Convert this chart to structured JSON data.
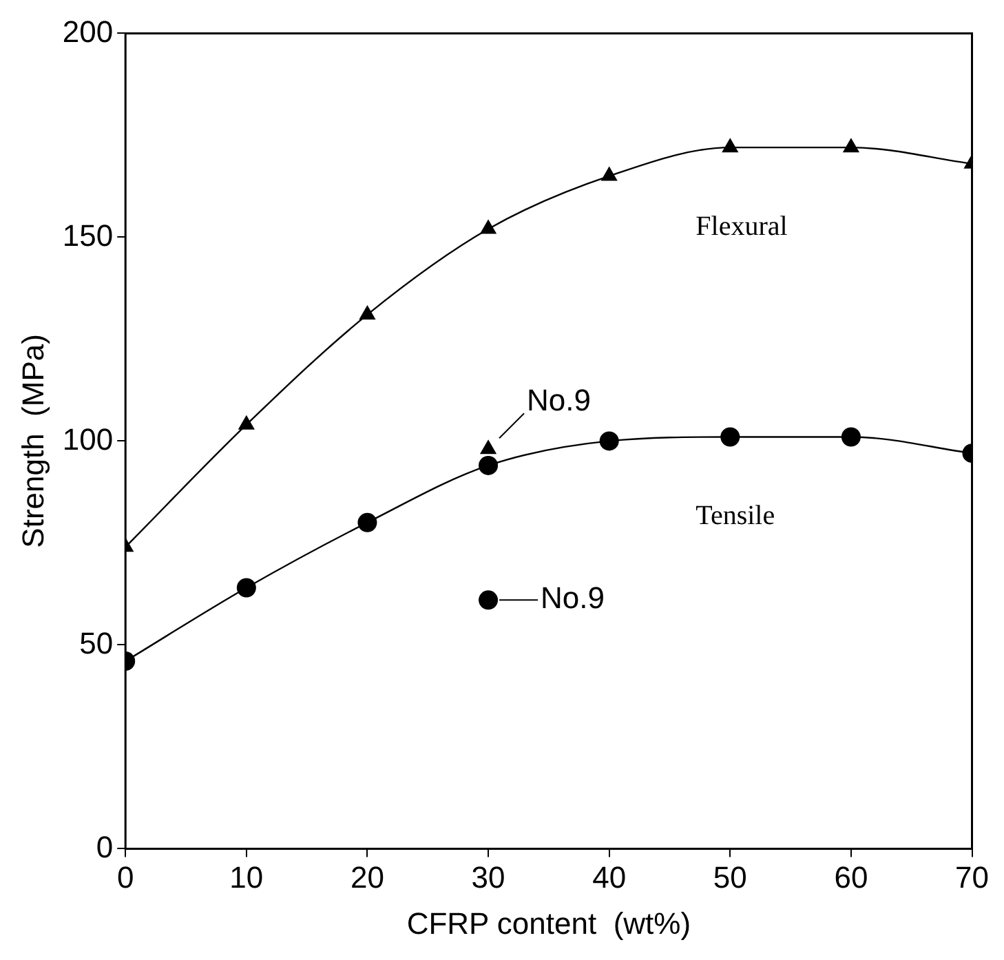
{
  "chart_data": {
    "type": "line",
    "xlabel": "CFRP content  (wt%)",
    "ylabel": "Strength  (MPa)",
    "x": [
      0,
      10,
      20,
      30,
      40,
      50,
      60,
      70
    ],
    "series": [
      {
        "name": "Flexural",
        "color": "#000000",
        "marker": "triangle",
        "values": [
          74,
          104,
          131,
          152,
          165,
          172,
          172,
          168
        ]
      },
      {
        "name": "Tensile",
        "color": "#000000",
        "marker": "circle",
        "values": [
          46,
          64,
          80,
          94,
          100,
          101,
          101,
          97
        ]
      },
      {
        "type": "scatter",
        "color": "#000000",
        "marker": "triangle",
        "x": [
          30
        ],
        "values": [
          98
        ]
      },
      {
        "type": "scatter",
        "color": "#000000",
        "marker": "circle",
        "x": [
          30
        ],
        "values": [
          61
        ]
      }
    ],
    "annotations": [
      {
        "text": "No.9",
        "x": 30,
        "y": 98
      },
      {
        "text": "No.9",
        "x": 30,
        "y": 61
      }
    ],
    "xlim": [
      0,
      70
    ],
    "xticks": [
      0,
      10,
      20,
      30,
      40,
      50,
      60,
      70
    ],
    "ylim": [
      0,
      200
    ],
    "yticks": [
      0,
      50,
      100,
      150,
      200
    ],
    "grid": false,
    "legend": false
  }
}
